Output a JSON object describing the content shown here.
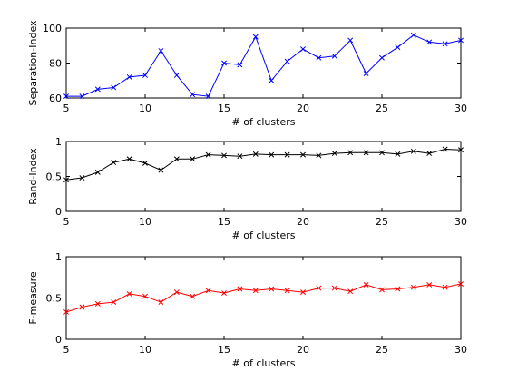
{
  "chart_data": [
    {
      "type": "line",
      "xlabel": "# of clusters",
      "ylabel": "Separation-Index",
      "xlim": [
        5,
        30
      ],
      "ylim": [
        60,
        100
      ],
      "xticks": [
        "5",
        "10",
        "15",
        "20",
        "25",
        "30"
      ],
      "yticks": [
        "60",
        "80",
        "100"
      ],
      "grid": false,
      "marker": "x",
      "color": "#0000ff",
      "x": [
        5,
        6,
        7,
        8,
        9,
        10,
        11,
        12,
        13,
        14,
        15,
        16,
        17,
        18,
        19,
        20,
        21,
        22,
        23,
        24,
        25,
        26,
        27,
        28,
        29,
        30
      ],
      "y": [
        61,
        61,
        65,
        66,
        72,
        73,
        87,
        73,
        62,
        61,
        80,
        79,
        95,
        70,
        81,
        88,
        83,
        84,
        93,
        74,
        83,
        89,
        96,
        92,
        91,
        93
      ]
    },
    {
      "type": "line",
      "xlabel": "# of clusters",
      "ylabel": "Rand-Index",
      "xlim": [
        5,
        30
      ],
      "ylim": [
        0,
        1
      ],
      "xticks": [
        "5",
        "10",
        "15",
        "20",
        "25",
        "30"
      ],
      "yticks": [
        "0",
        "0.5",
        "1"
      ],
      "grid": false,
      "marker": "x",
      "color": "#000000",
      "x": [
        5,
        6,
        7,
        8,
        9,
        10,
        11,
        12,
        13,
        14,
        15,
        16,
        17,
        18,
        19,
        20,
        21,
        22,
        23,
        24,
        25,
        26,
        27,
        28,
        29,
        30
      ],
      "y": [
        0.45,
        0.48,
        0.56,
        0.7,
        0.75,
        0.69,
        0.59,
        0.75,
        0.75,
        0.81,
        0.8,
        0.79,
        0.82,
        0.81,
        0.81,
        0.81,
        0.8,
        0.83,
        0.84,
        0.84,
        0.84,
        0.82,
        0.86,
        0.83,
        0.89,
        0.88
      ]
    },
    {
      "type": "line",
      "xlabel": "# of clusters",
      "ylabel": "F-measure",
      "xlim": [
        5,
        30
      ],
      "ylim": [
        0,
        1
      ],
      "xticks": [
        "5",
        "10",
        "15",
        "20",
        "25",
        "30"
      ],
      "yticks": [
        "0",
        "0.5",
        "1"
      ],
      "grid": false,
      "marker": "x",
      "color": "#ff0000",
      "x": [
        5,
        6,
        7,
        8,
        9,
        10,
        11,
        12,
        13,
        14,
        15,
        16,
        17,
        18,
        19,
        20,
        21,
        22,
        23,
        24,
        25,
        26,
        27,
        28,
        29,
        30
      ],
      "y": [
        0.33,
        0.39,
        0.43,
        0.45,
        0.55,
        0.52,
        0.45,
        0.57,
        0.52,
        0.59,
        0.56,
        0.61,
        0.59,
        0.61,
        0.59,
        0.57,
        0.62,
        0.62,
        0.58,
        0.66,
        0.6,
        0.61,
        0.63,
        0.66,
        0.63,
        0.67
      ]
    }
  ]
}
